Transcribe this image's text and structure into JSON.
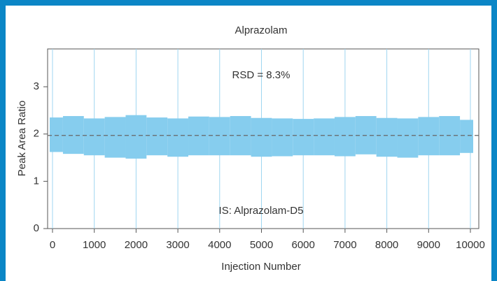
{
  "chart_data": {
    "type": "band",
    "title": "Alprazolam",
    "x_label": "Injection Number",
    "y_label": "Peak Area Ratio",
    "annotations": [
      "RSD = 8.3%",
      "IS: Alprazolam-D5"
    ],
    "x": [
      0,
      500,
      1000,
      1500,
      2000,
      2500,
      3000,
      3500,
      4000,
      4500,
      5000,
      5500,
      6000,
      6500,
      7000,
      7500,
      8000,
      8500,
      9000,
      9500,
      10000
    ],
    "high": [
      2.35,
      2.38,
      2.33,
      2.36,
      2.4,
      2.35,
      2.33,
      2.37,
      2.36,
      2.38,
      2.34,
      2.33,
      2.32,
      2.33,
      2.36,
      2.38,
      2.34,
      2.33,
      2.36,
      2.38,
      2.3
    ],
    "low": [
      1.62,
      1.58,
      1.55,
      1.5,
      1.48,
      1.55,
      1.52,
      1.55,
      1.55,
      1.55,
      1.52,
      1.53,
      1.55,
      1.55,
      1.53,
      1.57,
      1.52,
      1.5,
      1.55,
      1.55,
      1.6
    ],
    "color": "#86cdee",
    "reference_line": 1.97,
    "xlim": [
      0,
      10000
    ],
    "xticks": [
      0,
      1000,
      2000,
      3000,
      4000,
      5000,
      6000,
      7000,
      8000,
      9000,
      10000
    ],
    "ylim": [
      0,
      3.8
    ],
    "yticks": [
      0,
      1,
      2,
      3
    ],
    "grid": "x"
  }
}
